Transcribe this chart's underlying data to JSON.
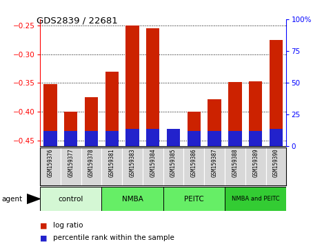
{
  "title": "GDS2839 / 22681",
  "samples": [
    "GSM159376",
    "GSM159377",
    "GSM159378",
    "GSM159381",
    "GSM159383",
    "GSM159384",
    "GSM159385",
    "GSM159386",
    "GSM159387",
    "GSM159388",
    "GSM159389",
    "GSM159390"
  ],
  "log_ratio": [
    -0.352,
    -0.4,
    -0.375,
    -0.33,
    -0.25,
    -0.255,
    -0.43,
    -0.4,
    -0.378,
    -0.348,
    -0.347,
    -0.275
  ],
  "percentile_rank": [
    12,
    12,
    12,
    12,
    14,
    14,
    14,
    12,
    12,
    12,
    12,
    14
  ],
  "groups": [
    {
      "label": "control",
      "start": 0,
      "end": 3,
      "color": "#d4f7d4"
    },
    {
      "label": "NMBA",
      "start": 3,
      "end": 6,
      "color": "#66ee66"
    },
    {
      "label": "PEITC",
      "start": 6,
      "end": 9,
      "color": "#66ee66"
    },
    {
      "label": "NMBA and PEITC",
      "start": 9,
      "end": 12,
      "color": "#33cc33"
    }
  ],
  "ymin": -0.46,
  "ymax": -0.24,
  "yticks_left": [
    -0.45,
    -0.4,
    -0.35,
    -0.3,
    -0.25
  ],
  "yticks_right": [
    0,
    25,
    50,
    75,
    100
  ],
  "bar_color": "#cc2200",
  "pct_color": "#2222cc",
  "background_color": "#ffffff",
  "agent_label": "agent",
  "legend_log": "log ratio",
  "legend_pct": "percentile rank within the sample",
  "bar_width": 0.65
}
